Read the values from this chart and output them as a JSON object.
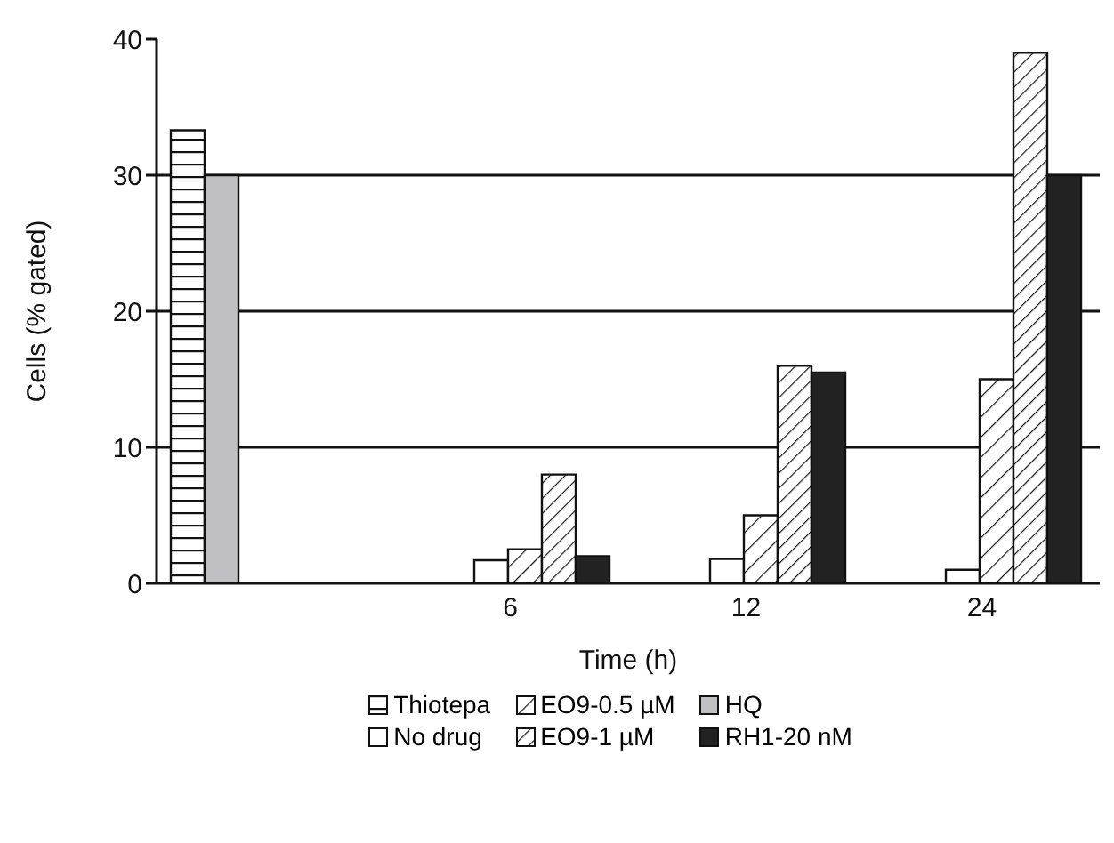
{
  "chart_data": {
    "type": "bar",
    "xlabel": "Time (h)",
    "ylabel": "Cells (% gated)",
    "categories": [
      null,
      "6",
      "12",
      "24"
    ],
    "series": [
      {
        "name": "Thiotepa",
        "color": "#111111",
        "values": [
          33.3,
          null,
          null,
          null
        ]
      },
      {
        "name": "HQ",
        "color": "#c0c0c4",
        "values": [
          30,
          null,
          null,
          null
        ]
      },
      {
        "name": "No drug",
        "color": "#ffffff",
        "values": [
          null,
          1.7,
          1.8,
          1
        ]
      },
      {
        "name": "EO9-0.5 µM",
        "color": "#111111",
        "values": [
          null,
          2.5,
          5,
          15
        ]
      },
      {
        "name": "EO9-1 µM",
        "color": "#111111",
        "values": [
          null,
          8,
          16,
          39
        ]
      },
      {
        "name": "RH1-20 nM",
        "color": "#222222",
        "values": [
          null,
          2,
          15.5,
          30
        ]
      }
    ],
    "ylim": [
      0,
      40
    ],
    "yticks": [
      0,
      10,
      20,
      30,
      40
    ],
    "grid": "y",
    "legend": "bottom"
  }
}
